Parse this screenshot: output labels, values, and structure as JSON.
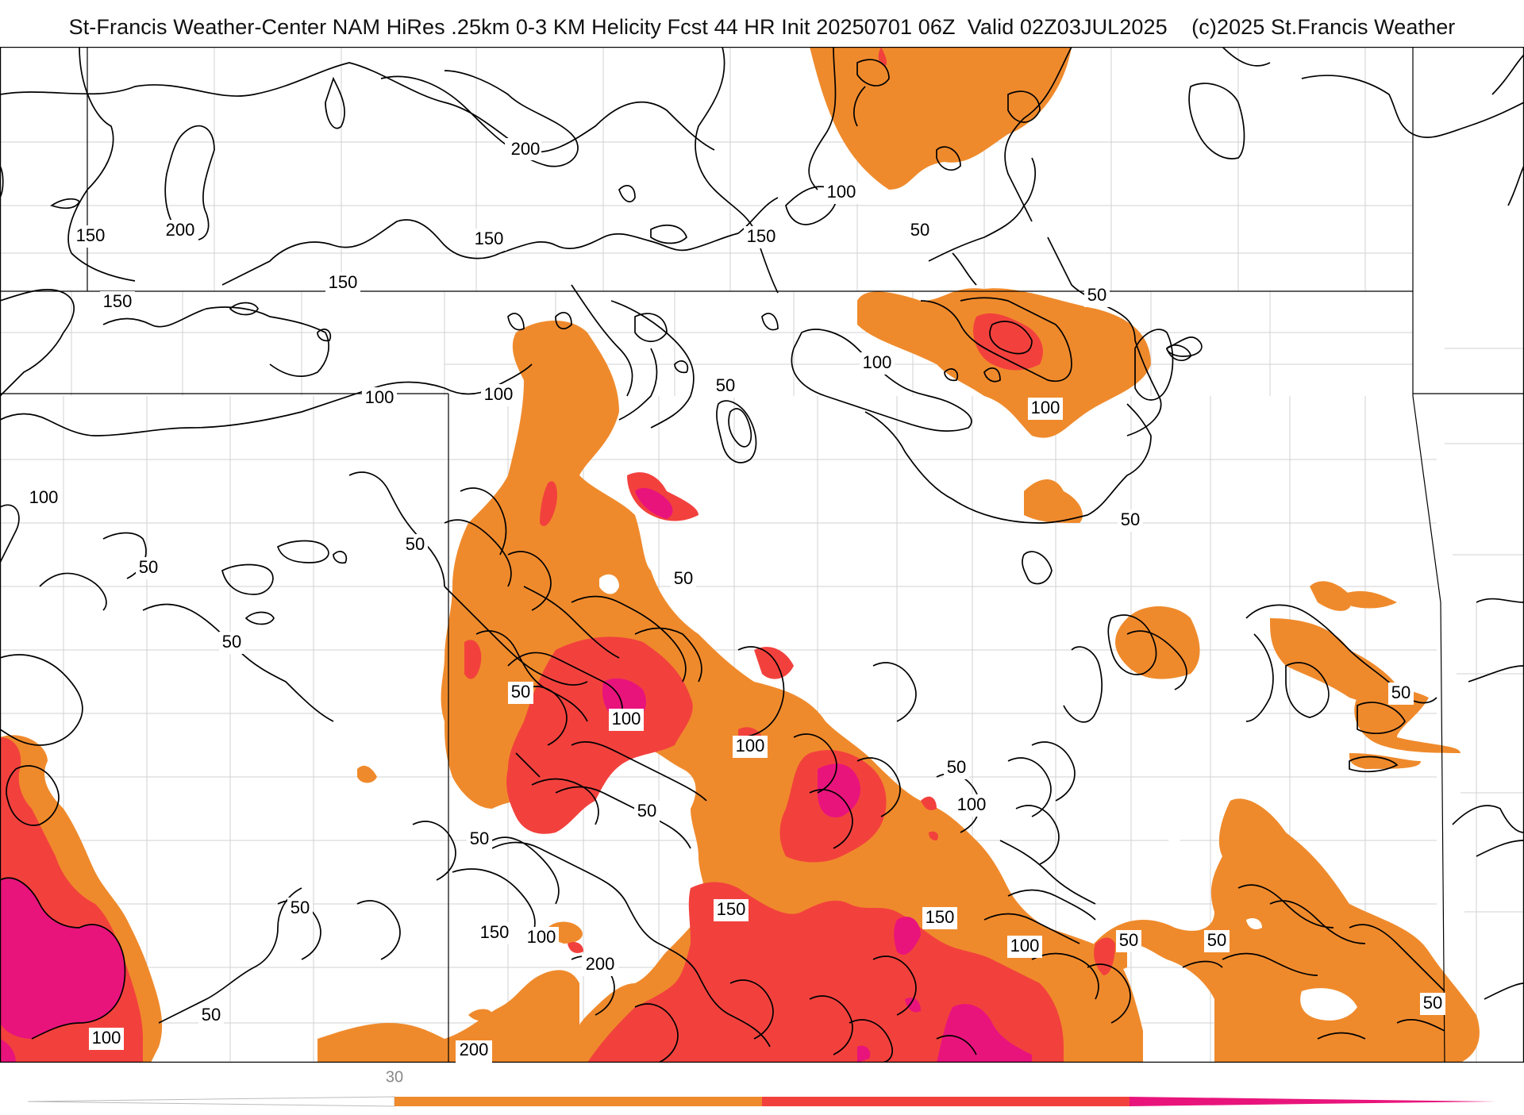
{
  "header": {
    "title": "St-Francis Weather-Center NAM HiRes .25km 0-3 KM Helicity Fcst 44 HR Init 20250701 06Z  Valid 02Z03JUL2025",
    "copyright": "(c)2025 St.Francis Weather"
  },
  "map": {
    "field": "0-3 KM Helicity",
    "contour_labels": {
      "c1": "200",
      "c2": "150",
      "c3": "200",
      "c4": "150",
      "c5": "150",
      "c6": "150",
      "c7": "150",
      "c8": "100",
      "c9": "50",
      "c10": "50",
      "c11": "100",
      "c12": "100",
      "c13": "100",
      "c14": "50",
      "c15": "100",
      "c16": "100",
      "c17": "50",
      "c18": "50",
      "c19": "50",
      "c20": "50",
      "c21": "50",
      "c22": "50",
      "c23": "100",
      "c24": "100",
      "c25": "50",
      "c26": "100",
      "c27": "50",
      "c28": "50",
      "c29": "50",
      "c30": "50",
      "c31": "150",
      "c32": "150",
      "c33": "100",
      "c34": "150",
      "c35": "100",
      "c36": "200",
      "c37": "50",
      "c38": "100",
      "c39": "50",
      "c40": "50",
      "c41": "200",
      "c42": "50",
      "c43": "100",
      "c44": "50"
    },
    "fill_colors": {
      "orange": "#ef8a2c",
      "red": "#f2413d",
      "magenta": "#e8147c"
    },
    "contour_color": "#000000",
    "county_line_color": "#cfcfcf",
    "state_line_color": "#000000"
  },
  "colorbar": {
    "tick_label": "30",
    "colors": [
      "#ef8a2c",
      "#f2413d",
      "#e8147c"
    ]
  }
}
